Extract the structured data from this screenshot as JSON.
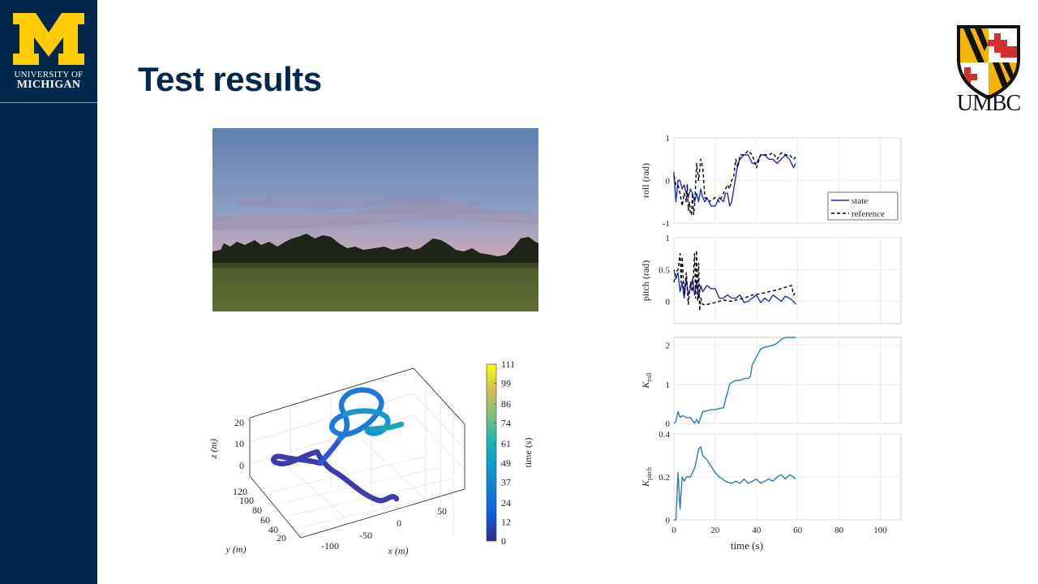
{
  "slide": {
    "title": "Test results"
  },
  "logos": {
    "left": {
      "line1": "UNIVERSITY OF",
      "line2": "MICHIGAN"
    },
    "right": {
      "text": "UMBC"
    }
  },
  "colors": {
    "navy": "#00274c",
    "maize": "#ffcb05"
  },
  "chart_data": [
    {
      "type": "scatter",
      "subtype": "3d-trajectory",
      "xlabel": "x (m)",
      "ylabel": "y (m)",
      "zlabel": "z (m)",
      "x_ticks": [
        "-100",
        "-50",
        "0",
        "50"
      ],
      "y_ticks": [
        "20",
        "40",
        "60",
        "80",
        "100",
        "120"
      ],
      "z_ticks": [
        "0",
        "10",
        "20"
      ],
      "colorbar": {
        "label": "time (s)",
        "ticks": [
          "0",
          "12",
          "24",
          "37",
          "49",
          "61",
          "74",
          "86",
          "99",
          "111"
        ],
        "range": [
          0,
          111
        ]
      }
    },
    {
      "type": "line",
      "ylabel": "roll (rad)",
      "ylim": [
        -1,
        1
      ],
      "y_ticks": [
        "-1",
        "0",
        "1"
      ],
      "xlim": [
        0,
        110
      ],
      "legend": {
        "placement": "bottom-right"
      },
      "series": [
        {
          "name": "state",
          "color": "#1f2bc4",
          "style": "solid",
          "x": [
            0,
            1,
            2,
            3,
            4,
            5,
            6,
            7,
            8,
            9,
            10,
            11,
            12,
            13,
            14,
            15,
            16,
            17,
            18,
            20,
            22,
            24,
            25,
            26,
            27,
            28,
            29,
            30,
            31,
            32,
            34,
            36,
            38,
            40,
            42,
            44,
            46,
            48,
            50,
            52,
            54,
            56,
            58,
            59
          ],
          "y": [
            0.2,
            -0.5,
            0.0,
            0.0,
            -0.2,
            -0.1,
            -0.3,
            -0.4,
            -0.2,
            -0.3,
            -0.5,
            -0.3,
            -0.5,
            -0.2,
            -0.4,
            -0.5,
            -0.4,
            -0.5,
            -0.6,
            -0.6,
            -0.4,
            -0.5,
            -0.3,
            -0.3,
            -0.6,
            -0.5,
            -0.2,
            0.1,
            0.4,
            0.5,
            0.6,
            0.6,
            0.4,
            0.4,
            0.6,
            0.6,
            0.5,
            0.5,
            0.4,
            0.5,
            0.6,
            0.5,
            0.3,
            0.4
          ]
        },
        {
          "name": "reference",
          "color": "#000000",
          "style": "dashed",
          "x": [
            0,
            1,
            2,
            3,
            4,
            5,
            6,
            6.5,
            7,
            7.5,
            8,
            8.5,
            9,
            9.5,
            10,
            11,
            12,
            13,
            14,
            15,
            17,
            20,
            22,
            24,
            26,
            27,
            28,
            29,
            30,
            31,
            32,
            34,
            36,
            38,
            40,
            42,
            44,
            46,
            48,
            50,
            52,
            54,
            56,
            58,
            59
          ],
          "y": [
            0.1,
            -0.1,
            -0.1,
            -0.3,
            -0.6,
            -0.3,
            -0.5,
            -0.1,
            -0.7,
            -0.5,
            -0.8,
            -0.8,
            -0.3,
            -0.8,
            -0.6,
            0.4,
            0.0,
            0.5,
            0.3,
            -0.4,
            -0.5,
            -0.4,
            -0.5,
            -0.3,
            -0.1,
            -0.2,
            0.0,
            0.1,
            0.5,
            0.3,
            0.6,
            0.6,
            0.7,
            0.6,
            0.3,
            0.6,
            0.6,
            0.6,
            0.65,
            0.5,
            0.65,
            0.6,
            0.6,
            0.5,
            0.55
          ]
        }
      ]
    },
    {
      "type": "line",
      "ylabel": "pitch (rad)",
      "ylim": [
        -0.35,
        1
      ],
      "y_ticks": [
        "0",
        "0.5",
        "1"
      ],
      "xlim": [
        0,
        110
      ],
      "series": [
        {
          "name": "state",
          "color": "#1f2bc4",
          "style": "solid",
          "x": [
            0,
            1,
            2,
            3,
            4,
            5,
            6,
            7,
            8,
            9,
            10,
            11,
            12,
            13,
            14,
            16,
            18,
            20,
            22,
            24,
            26,
            28,
            30,
            32,
            34,
            36,
            38,
            40,
            42,
            44,
            46,
            48,
            50,
            52,
            54,
            56,
            58,
            59
          ],
          "y": [
            0.5,
            0.35,
            0.45,
            0.15,
            0.3,
            0.05,
            0.35,
            0.1,
            0.2,
            0.35,
            0.1,
            0.3,
            0.05,
            0.25,
            0.15,
            0.25,
            0.2,
            0.2,
            0.05,
            0.05,
            0.1,
            0.05,
            0.05,
            0.1,
            -0.02,
            0.0,
            0.05,
            0.1,
            -0.02,
            0.05,
            0.0,
            0.1,
            0.05,
            0.0,
            0.08,
            0.05,
            0.0,
            -0.05
          ]
        },
        {
          "name": "reference",
          "color": "#000000",
          "style": "dashed",
          "x": [
            0,
            1,
            2,
            3,
            3.5,
            4,
            5,
            6,
            7,
            8,
            9,
            10,
            10.5,
            11,
            11.5,
            12,
            12.5,
            13,
            14,
            16,
            20,
            24,
            28,
            30,
            34,
            38,
            42,
            46,
            50,
            54,
            57,
            58,
            59
          ],
          "y": [
            0.3,
            0.45,
            0.5,
            0.75,
            0.3,
            0.7,
            0.1,
            0.45,
            -0.05,
            0.3,
            0.15,
            0.75,
            0.05,
            0.8,
            0.0,
            0.6,
            -0.15,
            0.05,
            -0.05,
            -0.05,
            -0.02,
            0.02,
            0.0,
            0.02,
            0.05,
            0.1,
            0.12,
            0.15,
            0.18,
            0.22,
            0.25,
            0.1,
            0.15
          ]
        }
      ]
    },
    {
      "type": "line",
      "ylabel": "K_roll",
      "ylim": [
        0,
        2.2
      ],
      "y_ticks": [
        "0",
        "1",
        "2"
      ],
      "xlim": [
        0,
        110
      ],
      "series": [
        {
          "name": "K_roll",
          "color": "#2e7bb4",
          "style": "solid",
          "x": [
            0,
            1,
            2,
            3,
            4,
            6,
            8,
            10,
            11,
            12,
            14,
            16,
            18,
            20,
            22,
            24,
            25,
            26,
            27,
            28,
            30,
            32,
            34,
            36,
            37,
            38,
            40,
            41,
            42,
            44,
            46,
            48,
            50,
            52,
            54,
            56,
            58,
            59
          ],
          "y": [
            0.0,
            0.05,
            0.3,
            0.15,
            0.2,
            0.15,
            0.15,
            0.0,
            0.1,
            0.0,
            0.3,
            0.32,
            0.35,
            0.35,
            0.38,
            0.4,
            0.6,
            0.8,
            1.0,
            1.05,
            1.1,
            1.1,
            1.15,
            1.15,
            1.2,
            1.5,
            1.7,
            1.8,
            1.9,
            1.95,
            1.97,
            2.0,
            2.05,
            2.15,
            2.2,
            2.2,
            2.2,
            2.2
          ]
        }
      ]
    },
    {
      "type": "line",
      "ylabel": "K_pitch",
      "xlabel": "time (s)",
      "ylim": [
        0,
        0.4
      ],
      "y_ticks": [
        "0",
        "0.2",
        "0.4"
      ],
      "xlim": [
        0,
        110
      ],
      "x_ticks": [
        "0",
        "20",
        "40",
        "60",
        "80",
        "100"
      ],
      "series": [
        {
          "name": "K_pitch",
          "color": "#2e7bb4",
          "style": "solid",
          "x": [
            0,
            1,
            2,
            3,
            4,
            5,
            6,
            8,
            10,
            11,
            12,
            13,
            14,
            16,
            18,
            20,
            22,
            25,
            28,
            30,
            32,
            34,
            36,
            38,
            40,
            42,
            44,
            46,
            48,
            50,
            52,
            54,
            56,
            58,
            59
          ],
          "y": [
            0.0,
            0.0,
            0.22,
            0.05,
            0.2,
            0.18,
            0.2,
            0.2,
            0.24,
            0.28,
            0.33,
            0.34,
            0.3,
            0.28,
            0.25,
            0.22,
            0.2,
            0.18,
            0.17,
            0.18,
            0.17,
            0.19,
            0.17,
            0.18,
            0.19,
            0.17,
            0.18,
            0.19,
            0.18,
            0.2,
            0.21,
            0.19,
            0.21,
            0.2,
            0.19
          ]
        }
      ]
    }
  ]
}
